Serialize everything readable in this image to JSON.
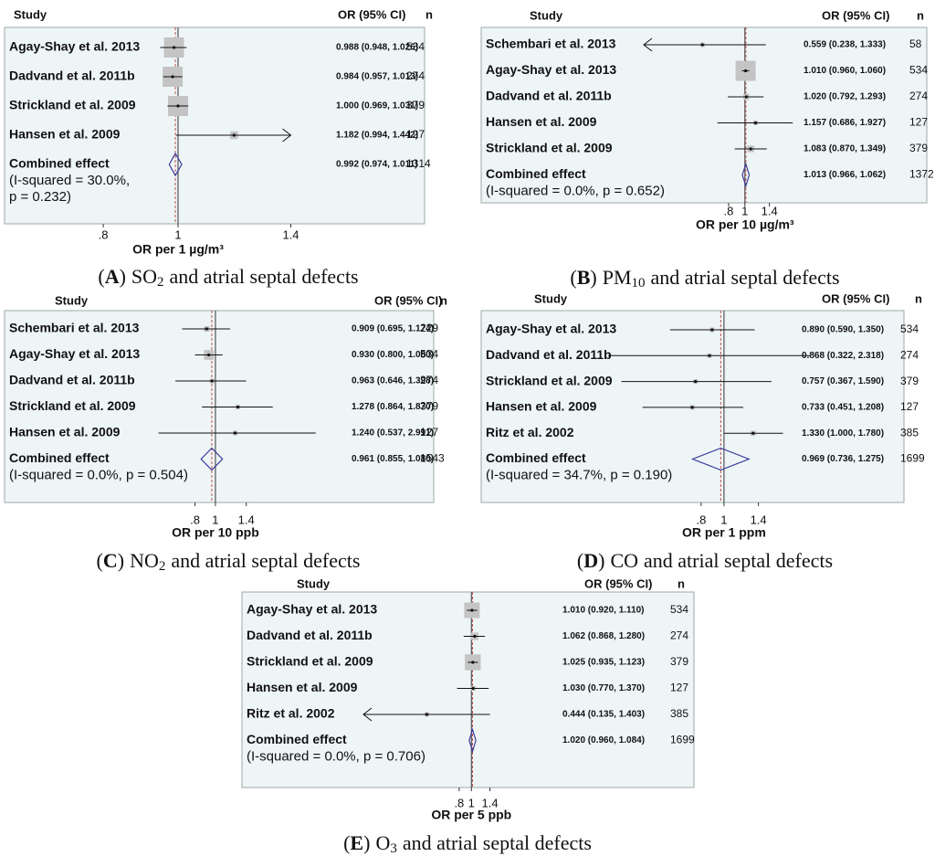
{
  "chart_data": [
    {
      "type": "forest",
      "xscale": "log",
      "reference_line": 1,
      "header": {
        "study": "Study",
        "ci": "OR (95% CI)",
        "n": "n"
      },
      "studies": [
        {
          "name": "Agay-Shay et al. 2013",
          "or": 0.988,
          "lo": 0.948,
          "hi": 1.026,
          "value_label": "0.988 (0.948, 1.026)",
          "n": 534
        },
        {
          "name": "Dadvand et al. 2011b",
          "or": 0.984,
          "lo": 0.957,
          "hi": 1.013,
          "value_label": "0.984 (0.957, 1.013)",
          "n": 274
        },
        {
          "name": "Strickland et al. 2009",
          "or": 1,
          "lo": 0.969,
          "hi": 1.031,
          "value_label": "1.000 (0.969, 1.031)",
          "n": 379
        },
        {
          "name": "Hansen et al. 2009",
          "or": 1.182,
          "lo": 0.994,
          "hi": 1.442,
          "value_label": "1.182 (0.994, 1.442)",
          "n": 127
        }
      ],
      "combined": {
        "name": "Combined effect",
        "heterogeneity": [
          "(I-squared = 30.0%,",
          "p = 0.232)"
        ],
        "or": 0.992,
        "lo": 0.974,
        "hi": 1.011,
        "value_label": "0.992 (0.974, 1.011)",
        "n": 1314
      },
      "xlim": [
        0.75,
        1.4
      ],
      "xticks": [
        {
          "value": 0.8,
          "label": ".8"
        },
        1,
        1.4
      ],
      "xlabel": "OR per 1 µg/m³",
      "caption": {
        "prefix": "(",
        "letter": "A",
        "suffix": ")",
        "pollutant": "SO",
        "subscript": "2",
        "text": "and atrial septal defects"
      }
    },
    {
      "type": "forest",
      "xscale": "log",
      "reference_line": 1,
      "header": {
        "study": "Study",
        "ci": "OR (95% CI)",
        "n": "n"
      },
      "studies": [
        {
          "name": "Schembari et al. 2013",
          "or": 0.559,
          "lo": 0.238,
          "hi": 1.333,
          "value_label": "0.559 (0.238, 1.333)",
          "n": 58
        },
        {
          "name": "Agay-Shay et al. 2013",
          "or": 1.01,
          "lo": 0.96,
          "hi": 1.06,
          "value_label": "1.010 (0.960, 1.060)",
          "n": 534
        },
        {
          "name": "Dadvand et al. 2011b",
          "or": 1.02,
          "lo": 0.792,
          "hi": 1.293,
          "value_label": "1.020 (0.792, 1.293)",
          "n": 274
        },
        {
          "name": "Hansen et al. 2009",
          "or": 1.157,
          "lo": 0.686,
          "hi": 1.927,
          "value_label": "1.157 (0.686, 1.927)",
          "n": 127
        },
        {
          "name": "Strickland et al. 2009",
          "or": 1.083,
          "lo": 0.87,
          "hi": 1.349,
          "value_label": "1.083 (0.870, 1.349)",
          "n": 379
        }
      ],
      "combined": {
        "name": "Combined effect",
        "heterogeneity": [
          "(I-squared = 0.0%, p = 0.652)"
        ],
        "or": 1.013,
        "lo": 0.966,
        "hi": 1.062,
        "value_label": "1.013 (0.966, 1.062)",
        "n": 1372
      },
      "xlim": [
        0.25,
        2.5
      ],
      "xticks": [
        {
          "value": 0.8,
          "label": ".8"
        },
        1,
        1.4
      ],
      "xlabel": "OR per 10 µg/m³",
      "caption": {
        "prefix": "(",
        "letter": "B",
        "suffix": ")",
        "pollutant": "PM",
        "subscript": "10",
        "text": "and atrial septal defects"
      }
    },
    {
      "type": "forest",
      "xscale": "log",
      "reference_line": 1,
      "header": {
        "study": "Study",
        "ci": "OR (95% CI)",
        "n": "n"
      },
      "studies": [
        {
          "name": "Schembari et al. 2013",
          "or": 0.909,
          "lo": 0.695,
          "hi": 1.174,
          "value_label": "0.909 (0.695, 1.174)",
          "n": 229
        },
        {
          "name": "Agay-Shay et al. 2013",
          "or": 0.93,
          "lo": 0.8,
          "hi": 1.08,
          "value_label": "0.930 (0.800, 1.080)",
          "n": 534
        },
        {
          "name": "Dadvand et al. 2011b",
          "or": 0.963,
          "lo": 0.646,
          "hi": 1.398,
          "value_label": "0.963 (0.646, 1.398)",
          "n": 274
        },
        {
          "name": "Strickland et al. 2009",
          "or": 1.278,
          "lo": 0.864,
          "hi": 1.87,
          "value_label": "1.278 (0.864, 1.870)",
          "n": 379
        },
        {
          "name": "Hansen et al. 2009",
          "or": 1.24,
          "lo": 0.537,
          "hi": 2.991,
          "value_label": "1.240 (0.537, 2.991)",
          "n": 127
        }
      ],
      "combined": {
        "name": "Combined effect",
        "heterogeneity": [
          "(I-squared = 0.0%, p = 0.504)"
        ],
        "or": 0.961,
        "lo": 0.855,
        "hi": 1.08,
        "value_label": "0.961 (0.855, 1.080)",
        "n": 1543
      },
      "xlim": [
        0.4,
        4
      ],
      "xticks": [
        {
          "value": 0.8,
          "label": ".8"
        },
        1,
        1.4
      ],
      "xlabel": "OR per 10 ppb",
      "caption": {
        "prefix": "(",
        "letter": "C",
        "suffix": ")",
        "pollutant": "NO",
        "subscript": "2",
        "text": "and atrial septal defects"
      }
    },
    {
      "type": "forest",
      "xscale": "log",
      "reference_line": 1,
      "header": {
        "study": "Study",
        "ci": "OR (95% CI)",
        "n": "n"
      },
      "studies": [
        {
          "name": "Agay-Shay et al. 2013",
          "or": 0.89,
          "lo": 0.59,
          "hi": 1.35,
          "value_label": "0.890 (0.590, 1.350)",
          "n": 534
        },
        {
          "name": "Dadvand et al. 2011b",
          "or": 0.868,
          "lo": 0.322,
          "hi": 2.318,
          "value_label": "0.868 (0.322, 2.318)",
          "n": 274
        },
        {
          "name": "Strickland et al. 2009",
          "or": 0.757,
          "lo": 0.367,
          "hi": 1.59,
          "value_label": "0.757 (0.367, 1.590)",
          "n": 379
        },
        {
          "name": "Hansen et al. 2009",
          "or": 0.733,
          "lo": 0.451,
          "hi": 1.208,
          "value_label": "0.733 (0.451, 1.208)",
          "n": 127
        },
        {
          "name": "Ritz et al. 2002",
          "or": 1.33,
          "lo": 1,
          "hi": 1.78,
          "value_label": "1.330 (1.000, 1.780)",
          "n": 385
        }
      ],
      "combined": {
        "name": "Combined effect",
        "heterogeneity": [
          "(I-squared = 34.7%, p = 0.190)"
        ],
        "or": 0.969,
        "lo": 0.736,
        "hi": 1.275,
        "value_label": "0.969 (0.736, 1.275)",
        "n": 1699
      },
      "xlim": [
        0.3,
        3
      ],
      "xticks": [
        {
          "value": 0.8,
          "label": ".8"
        },
        1,
        1.4
      ],
      "xlabel": "OR per 1 ppm",
      "caption": {
        "prefix": "(",
        "letter": "D",
        "suffix": ")",
        "pollutant": "CO",
        "subscript": "",
        "text": "and atrial septal defects"
      }
    },
    {
      "type": "forest",
      "xscale": "log",
      "reference_line": 1,
      "header": {
        "study": "Study",
        "ci": "OR (95% CI)",
        "n": "n"
      },
      "studies": [
        {
          "name": "Agay-Shay et al. 2013",
          "or": 1.01,
          "lo": 0.92,
          "hi": 1.11,
          "value_label": "1.010 (0.920, 1.110)",
          "n": 534
        },
        {
          "name": "Dadvand et al. 2011b",
          "or": 1.062,
          "lo": 0.868,
          "hi": 1.28,
          "value_label": "1.062 (0.868, 1.280)",
          "n": 274
        },
        {
          "name": "Strickland et al. 2009",
          "or": 1.025,
          "lo": 0.935,
          "hi": 1.123,
          "value_label": "1.025 (0.935, 1.123)",
          "n": 379
        },
        {
          "name": "Hansen et al. 2009",
          "or": 1.03,
          "lo": 0.77,
          "hi": 1.37,
          "value_label": "1.030 (0.770, 1.370)",
          "n": 127
        },
        {
          "name": "Ritz et al. 2002",
          "or": 0.444,
          "lo": 0.135,
          "hi": 1.403,
          "value_label": "0.444 (0.135, 1.403)",
          "n": 385
        }
      ],
      "combined": {
        "name": "Combined effect",
        "heterogeneity": [
          "(I-squared = 0.0%, p = 0.706)"
        ],
        "or": 1.02,
        "lo": 0.96,
        "hi": 1.084,
        "value_label": "1.020 (0.960, 1.084)",
        "n": 1699
      },
      "xlim": [
        0.14,
        2
      ],
      "xticks": [
        {
          "value": 0.8,
          "label": ".8"
        },
        1,
        1.4
      ],
      "xlabel": "OR per 5 ppb",
      "caption": {
        "prefix": "(",
        "letter": "E",
        "suffix": ")",
        "pollutant": "O",
        "subscript": "3",
        "text": "and atrial septal defects"
      }
    }
  ]
}
